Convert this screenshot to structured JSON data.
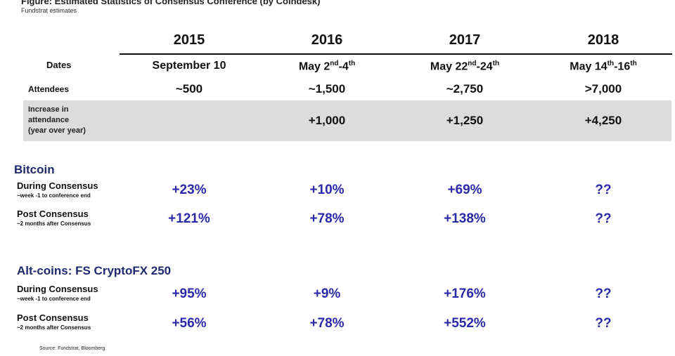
{
  "figure": {
    "title": "Figure: Estimated Statistics of Consensus Conference (by Coindesk)",
    "subtitle": "Fundstrat estimates"
  },
  "years": [
    "2015",
    "2016",
    "2017",
    "2018"
  ],
  "rows": {
    "dates_label": "Dates",
    "dates": [
      {
        "main": "September 10",
        "sup1": "",
        "mid": "",
        "sup2": ""
      },
      {
        "main": "May 2",
        "sup1": "nd",
        "mid": "-4",
        "sup2": "th"
      },
      {
        "main": "May 22",
        "sup1": "nd",
        "mid": "-24",
        "sup2": "th"
      },
      {
        "main": "May 14",
        "sup1": "th",
        "mid": "-16",
        "sup2": "th"
      }
    ],
    "attendees_label": "Attendees",
    "attendees": [
      "~500",
      "~1,500",
      "~2,750",
      ">7,000"
    ],
    "increase_label": [
      "Increase in",
      "attendance",
      "(year over year)"
    ],
    "increase": [
      "",
      "+1,000",
      "+1,250",
      "+4,250"
    ]
  },
  "bitcoin": {
    "title": "Bitcoin",
    "during_label": "During Consensus",
    "during_note": "~week -1 to conference end",
    "during": [
      "+23%",
      "+10%",
      "+69%",
      "??"
    ],
    "post_label": "Post Consensus",
    "post_note": "~2 months after Consensus",
    "post": [
      "+121%",
      "+78%",
      "+138%",
      "??"
    ]
  },
  "altcoins": {
    "title": "Alt-coins: FS CryptoFX 250",
    "during_label": "During Consensus",
    "during_note": "~week -1 to conference end",
    "during": [
      "+95%",
      "+9%",
      "+176%",
      "??"
    ],
    "post_label": "Post Consensus",
    "post_note": "~2 months after Consensus",
    "post": [
      "+56%",
      "+78%",
      "+552%",
      "??"
    ]
  },
  "source": "Source: Fundstrat, Bloomberg",
  "colors": {
    "value_blue": "#2a2aa8",
    "section_navy": "#1f2a6e",
    "band_gray": "#dcdcdc"
  }
}
